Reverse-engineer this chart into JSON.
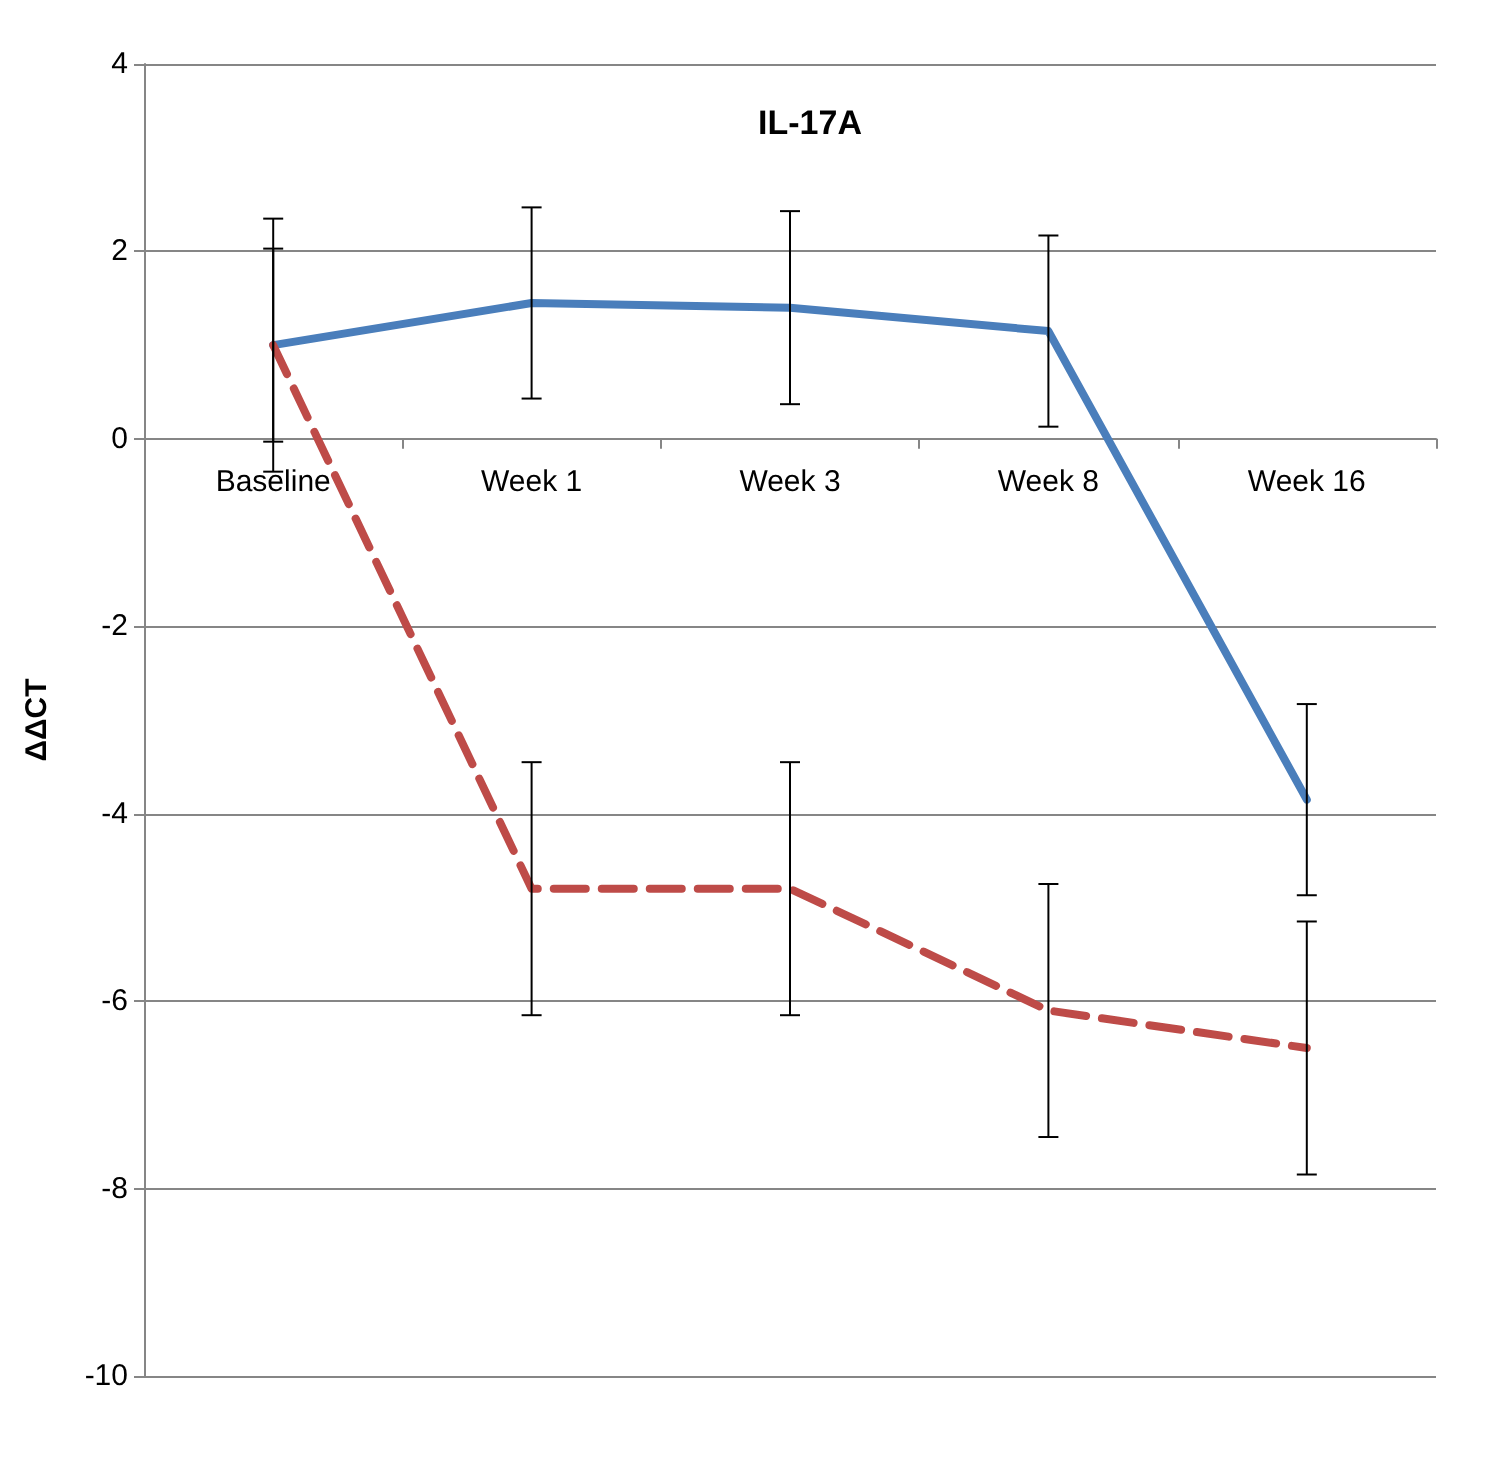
{
  "chart_data": {
    "type": "line",
    "title": "IL-17A",
    "ylabel": "ΔΔCT",
    "categories": [
      "Baseline",
      "Week 1",
      "Week 3",
      "Week 8",
      "Week 16"
    ],
    "series": [
      {
        "color": "#4a7ebb",
        "line_style": "solid",
        "values": [
          1.0,
          1.45,
          1.4,
          1.15,
          -3.85
        ],
        "errors": [
          1.35,
          1.02,
          1.03,
          1.02,
          1.02
        ]
      },
      {
        "color": "#be4b48",
        "line_style": "dashed",
        "values": [
          1.0,
          -4.8,
          -4.8,
          -6.1,
          -6.5
        ],
        "errors": [
          1.03,
          1.35,
          1.35,
          1.35,
          1.35
        ]
      }
    ],
    "ylim": [
      -10,
      4
    ],
    "yticks": [
      -10,
      -8,
      -6,
      -4,
      -2,
      0,
      2,
      4
    ],
    "grid": "y",
    "marker": "none"
  }
}
